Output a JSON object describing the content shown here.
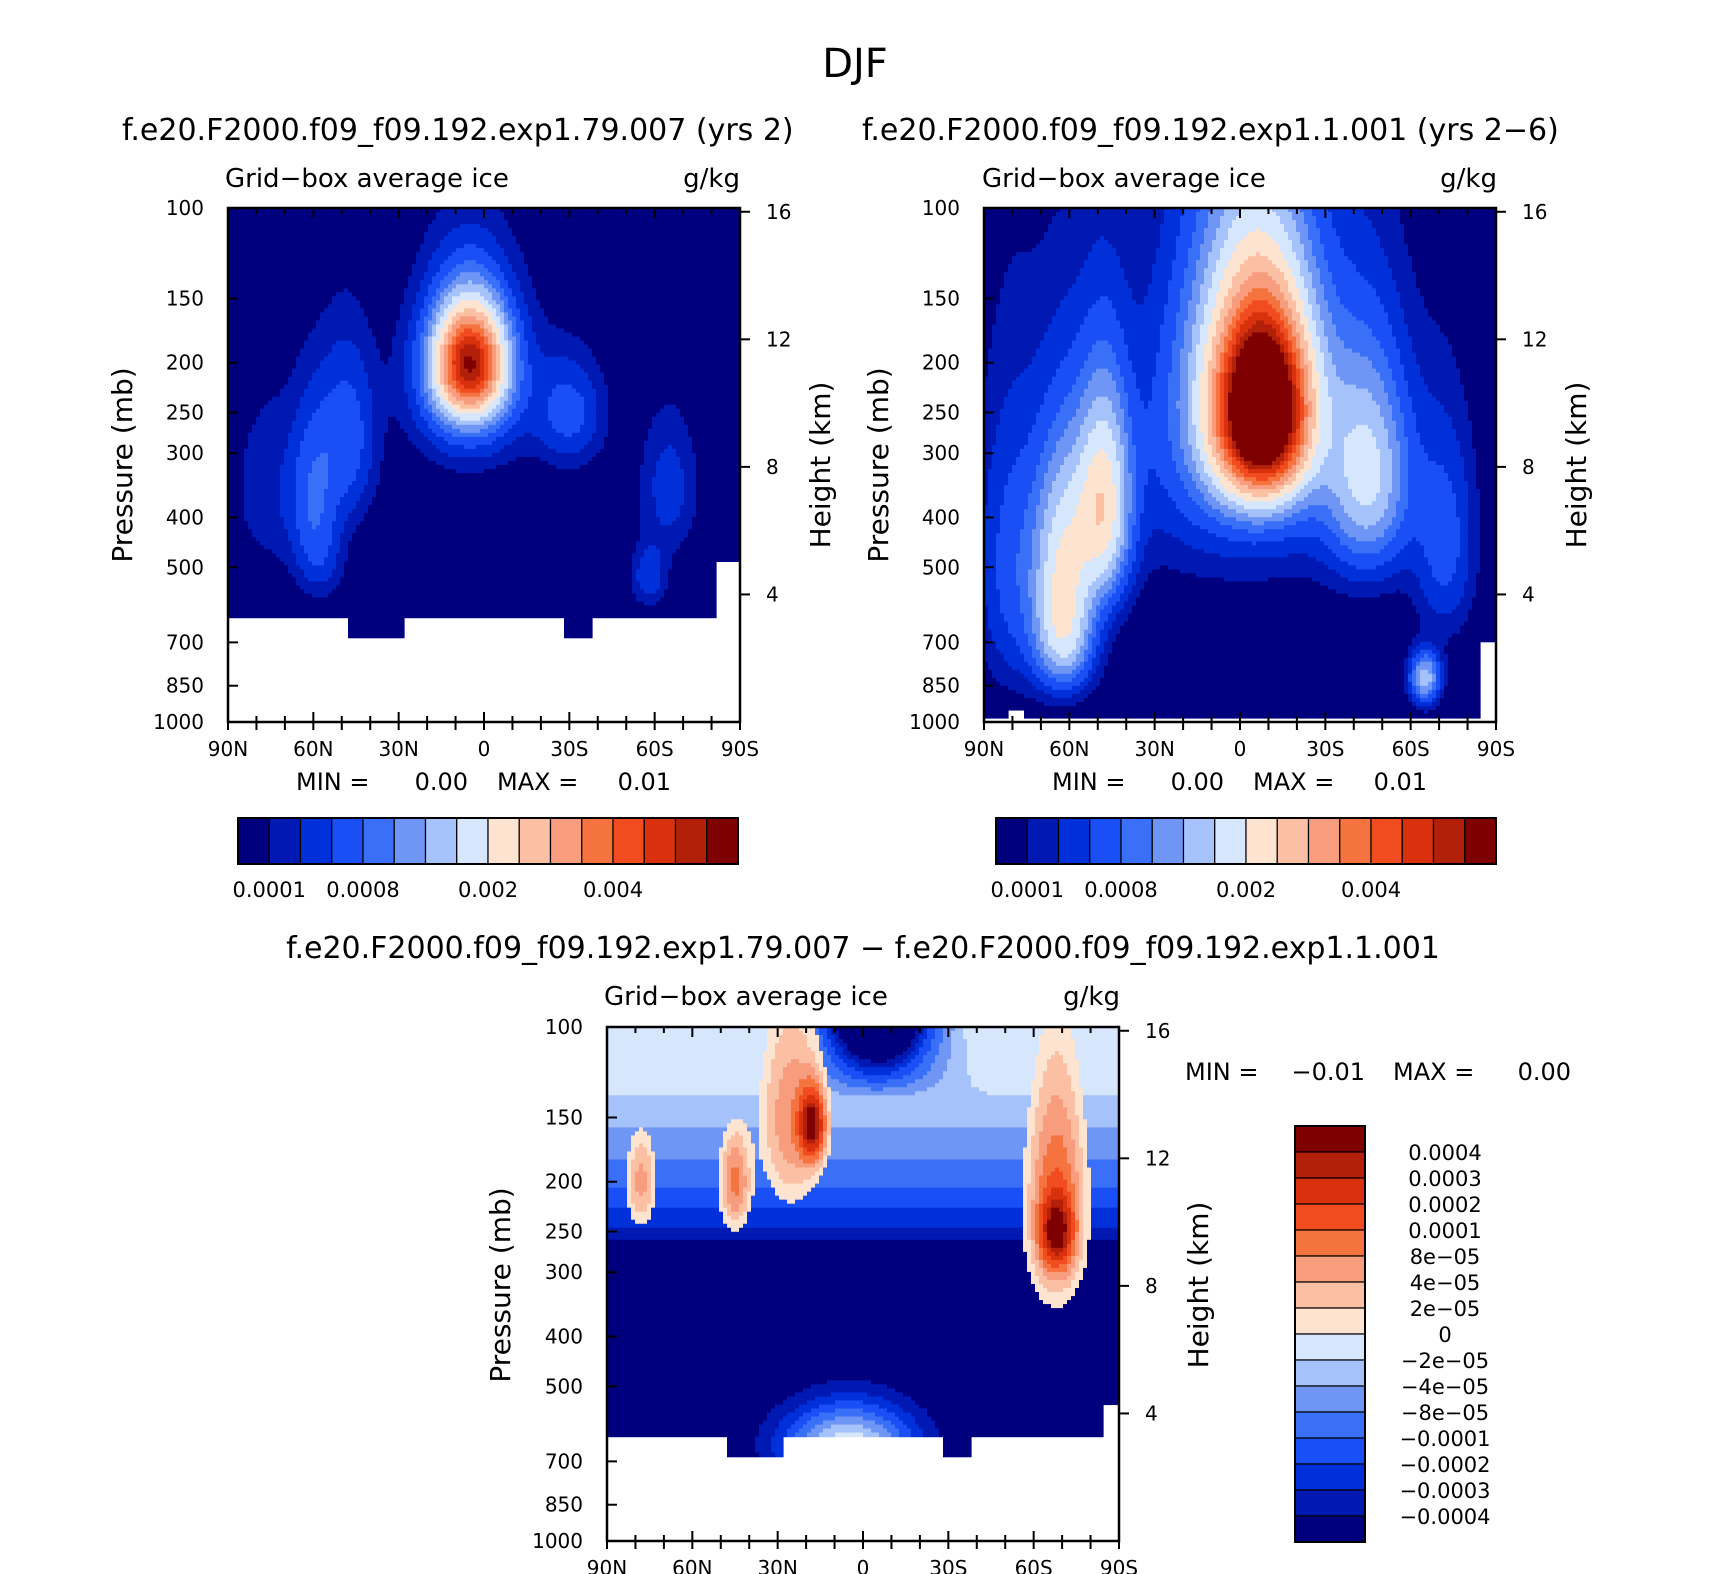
{
  "page_title": "DJF",
  "chart_data": [
    {
      "type": "contour",
      "id": "panel1",
      "title": "f.e20.F2000.f09_f09.192.exp1.79.007 (yrs 2)",
      "left_label": "Grid−box average ice",
      "right_label": "g/kg",
      "ylabel": "Pressure (mb)",
      "ylabel_right": "Height (km)",
      "y_ticks": [
        "100",
        "150",
        "200",
        "250",
        "300",
        "400",
        "500",
        "700",
        "850",
        "1000"
      ],
      "height_ticks": [
        "16",
        "12",
        "8",
        "4"
      ],
      "x_ticks": [
        "90N",
        "60N",
        "30N",
        "0",
        "30S",
        "60S",
        "90S"
      ],
      "stats": {
        "min_label": "MIN =",
        "min_value": "0.00",
        "max_label": "MAX =",
        "max_value": "0.01"
      },
      "colorbar_labels": [
        "0.0001",
        "0.0008",
        "0.002",
        "0.004"
      ],
      "features": [
        {
          "lat": 5,
          "p": 200,
          "v": 0.9,
          "slat": 11,
          "sp": 45
        },
        {
          "lat": 5,
          "p": 210,
          "v": 0.25,
          "slat": 18,
          "sp": 80
        },
        {
          "lat": -30,
          "p": 250,
          "v": 0.12,
          "slat": 12,
          "sp": 60
        },
        {
          "lat": 48,
          "p": 280,
          "v": 0.13,
          "slat": 10,
          "sp": 110
        },
        {
          "lat": 60,
          "p": 360,
          "v": 0.12,
          "slat": 8,
          "sp": 130
        },
        {
          "lat": 57,
          "p": 480,
          "v": 0.06,
          "slat": 8,
          "sp": 90
        },
        {
          "lat": -65,
          "p": 350,
          "v": 0.08,
          "slat": 10,
          "sp": 110
        },
        {
          "lat": -58,
          "p": 520,
          "v": 0.09,
          "slat": 6,
          "sp": 70
        },
        {
          "lat": 75,
          "p": 350,
          "v": 0.05,
          "slat": 14,
          "sp": 150
        }
      ]
    },
    {
      "type": "contour",
      "id": "panel2",
      "title": "f.e20.F2000.f09_f09.192.exp1.1.001 (yrs 2−6)",
      "left_label": "Grid−box average ice",
      "right_label": "g/kg",
      "ylabel": "Pressure (mb)",
      "ylabel_right": "Height (km)",
      "y_ticks": [
        "100",
        "150",
        "200",
        "250",
        "300",
        "400",
        "500",
        "700",
        "850",
        "1000"
      ],
      "height_ticks": [
        "16",
        "12",
        "8",
        "4"
      ],
      "x_ticks": [
        "90N",
        "60N",
        "30N",
        "0",
        "30S",
        "60S",
        "90S"
      ],
      "stats": {
        "min_label": "MIN =",
        "min_value": "0.00",
        "max_label": "MAX =",
        "max_value": "0.01"
      },
      "colorbar_labels": [
        "0.0001",
        "0.0008",
        "0.002",
        "0.004"
      ],
      "features": [
        {
          "lat": -8,
          "p": 250,
          "v": 1.25,
          "slat": 14,
          "sp": 90
        },
        {
          "lat": -5,
          "p": 220,
          "v": 0.5,
          "slat": 22,
          "sp": 140
        },
        {
          "lat": 48,
          "p": 380,
          "v": 0.45,
          "slat": 9,
          "sp": 170
        },
        {
          "lat": 62,
          "p": 500,
          "v": 0.38,
          "slat": 10,
          "sp": 230
        },
        {
          "lat": 62,
          "p": 700,
          "v": 0.22,
          "slat": 10,
          "sp": 150
        },
        {
          "lat": -45,
          "p": 330,
          "v": 0.32,
          "slat": 14,
          "sp": 150
        },
        {
          "lat": -65,
          "p": 820,
          "v": 0.3,
          "slat": 5,
          "sp": 90
        },
        {
          "lat": -72,
          "p": 450,
          "v": 0.12,
          "slat": 10,
          "sp": 200
        },
        {
          "lat": 80,
          "p": 500,
          "v": 0.12,
          "slat": 12,
          "sp": 300
        },
        {
          "lat": 0,
          "p": 300,
          "v": 0.1,
          "slat": 50,
          "sp": 200
        }
      ]
    },
    {
      "type": "contour",
      "id": "diff",
      "title": "f.e20.F2000.f09_f09.192.exp1.79.007 − f.e20.F2000.f09_f09.192.exp1.1.001",
      "left_label": "Grid−box average ice",
      "right_label": "g/kg",
      "ylabel": "Pressure (mb)",
      "ylabel_right": "Height (km)",
      "y_ticks": [
        "100",
        "150",
        "200",
        "250",
        "300",
        "400",
        "500",
        "700",
        "850",
        "1000"
      ],
      "height_ticks": [
        "16",
        "12",
        "8",
        "4"
      ],
      "x_ticks": [
        "90N",
        "60N",
        "30N",
        "0",
        "30S",
        "60S",
        "90S"
      ],
      "stats": {
        "min_label": "MIN =",
        "min_value": "−0.01",
        "max_label": "MAX =",
        "max_value": "0.00"
      },
      "colorbar_labels": [
        "0.0004",
        "0.0003",
        "0.0002",
        "0.0001",
        "8e−05",
        "4e−05",
        "2e−05",
        "0",
        "−2e−05",
        "−4e−05",
        "−8e−05",
        "−0.0001",
        "−0.0002",
        "−0.0003",
        "−0.0004"
      ],
      "features": [
        {
          "lat": 18,
          "p": 155,
          "v": 1.0,
          "slat": 4,
          "sp": 22
        },
        {
          "lat": -68,
          "p": 250,
          "v": 0.85,
          "slat": 5,
          "sp": 35
        },
        {
          "lat": -68,
          "p": 220,
          "v": 0.45,
          "slat": 9,
          "sp": 100
        },
        {
          "lat": 45,
          "p": 200,
          "v": 0.35,
          "slat": 5,
          "sp": 40
        },
        {
          "lat": 78,
          "p": 200,
          "v": 0.25,
          "slat": 5,
          "sp": 40
        },
        {
          "lat": 25,
          "p": 150,
          "v": 0.3,
          "slat": 10,
          "sp": 60
        }
      ]
    }
  ],
  "colors": {
    "blue_red_16": [
      "#00007f",
      "#0019b3",
      "#0030d9",
      "#1a4ff5",
      "#3a6ff7",
      "#6f96f5",
      "#a6c2fb",
      "#d6e6fd",
      "#fde4d0",
      "#fbc0a4",
      "#f89c7e",
      "#f5733e",
      "#f04c1f",
      "#d9300e",
      "#b3200a",
      "#7f0000"
    ]
  }
}
